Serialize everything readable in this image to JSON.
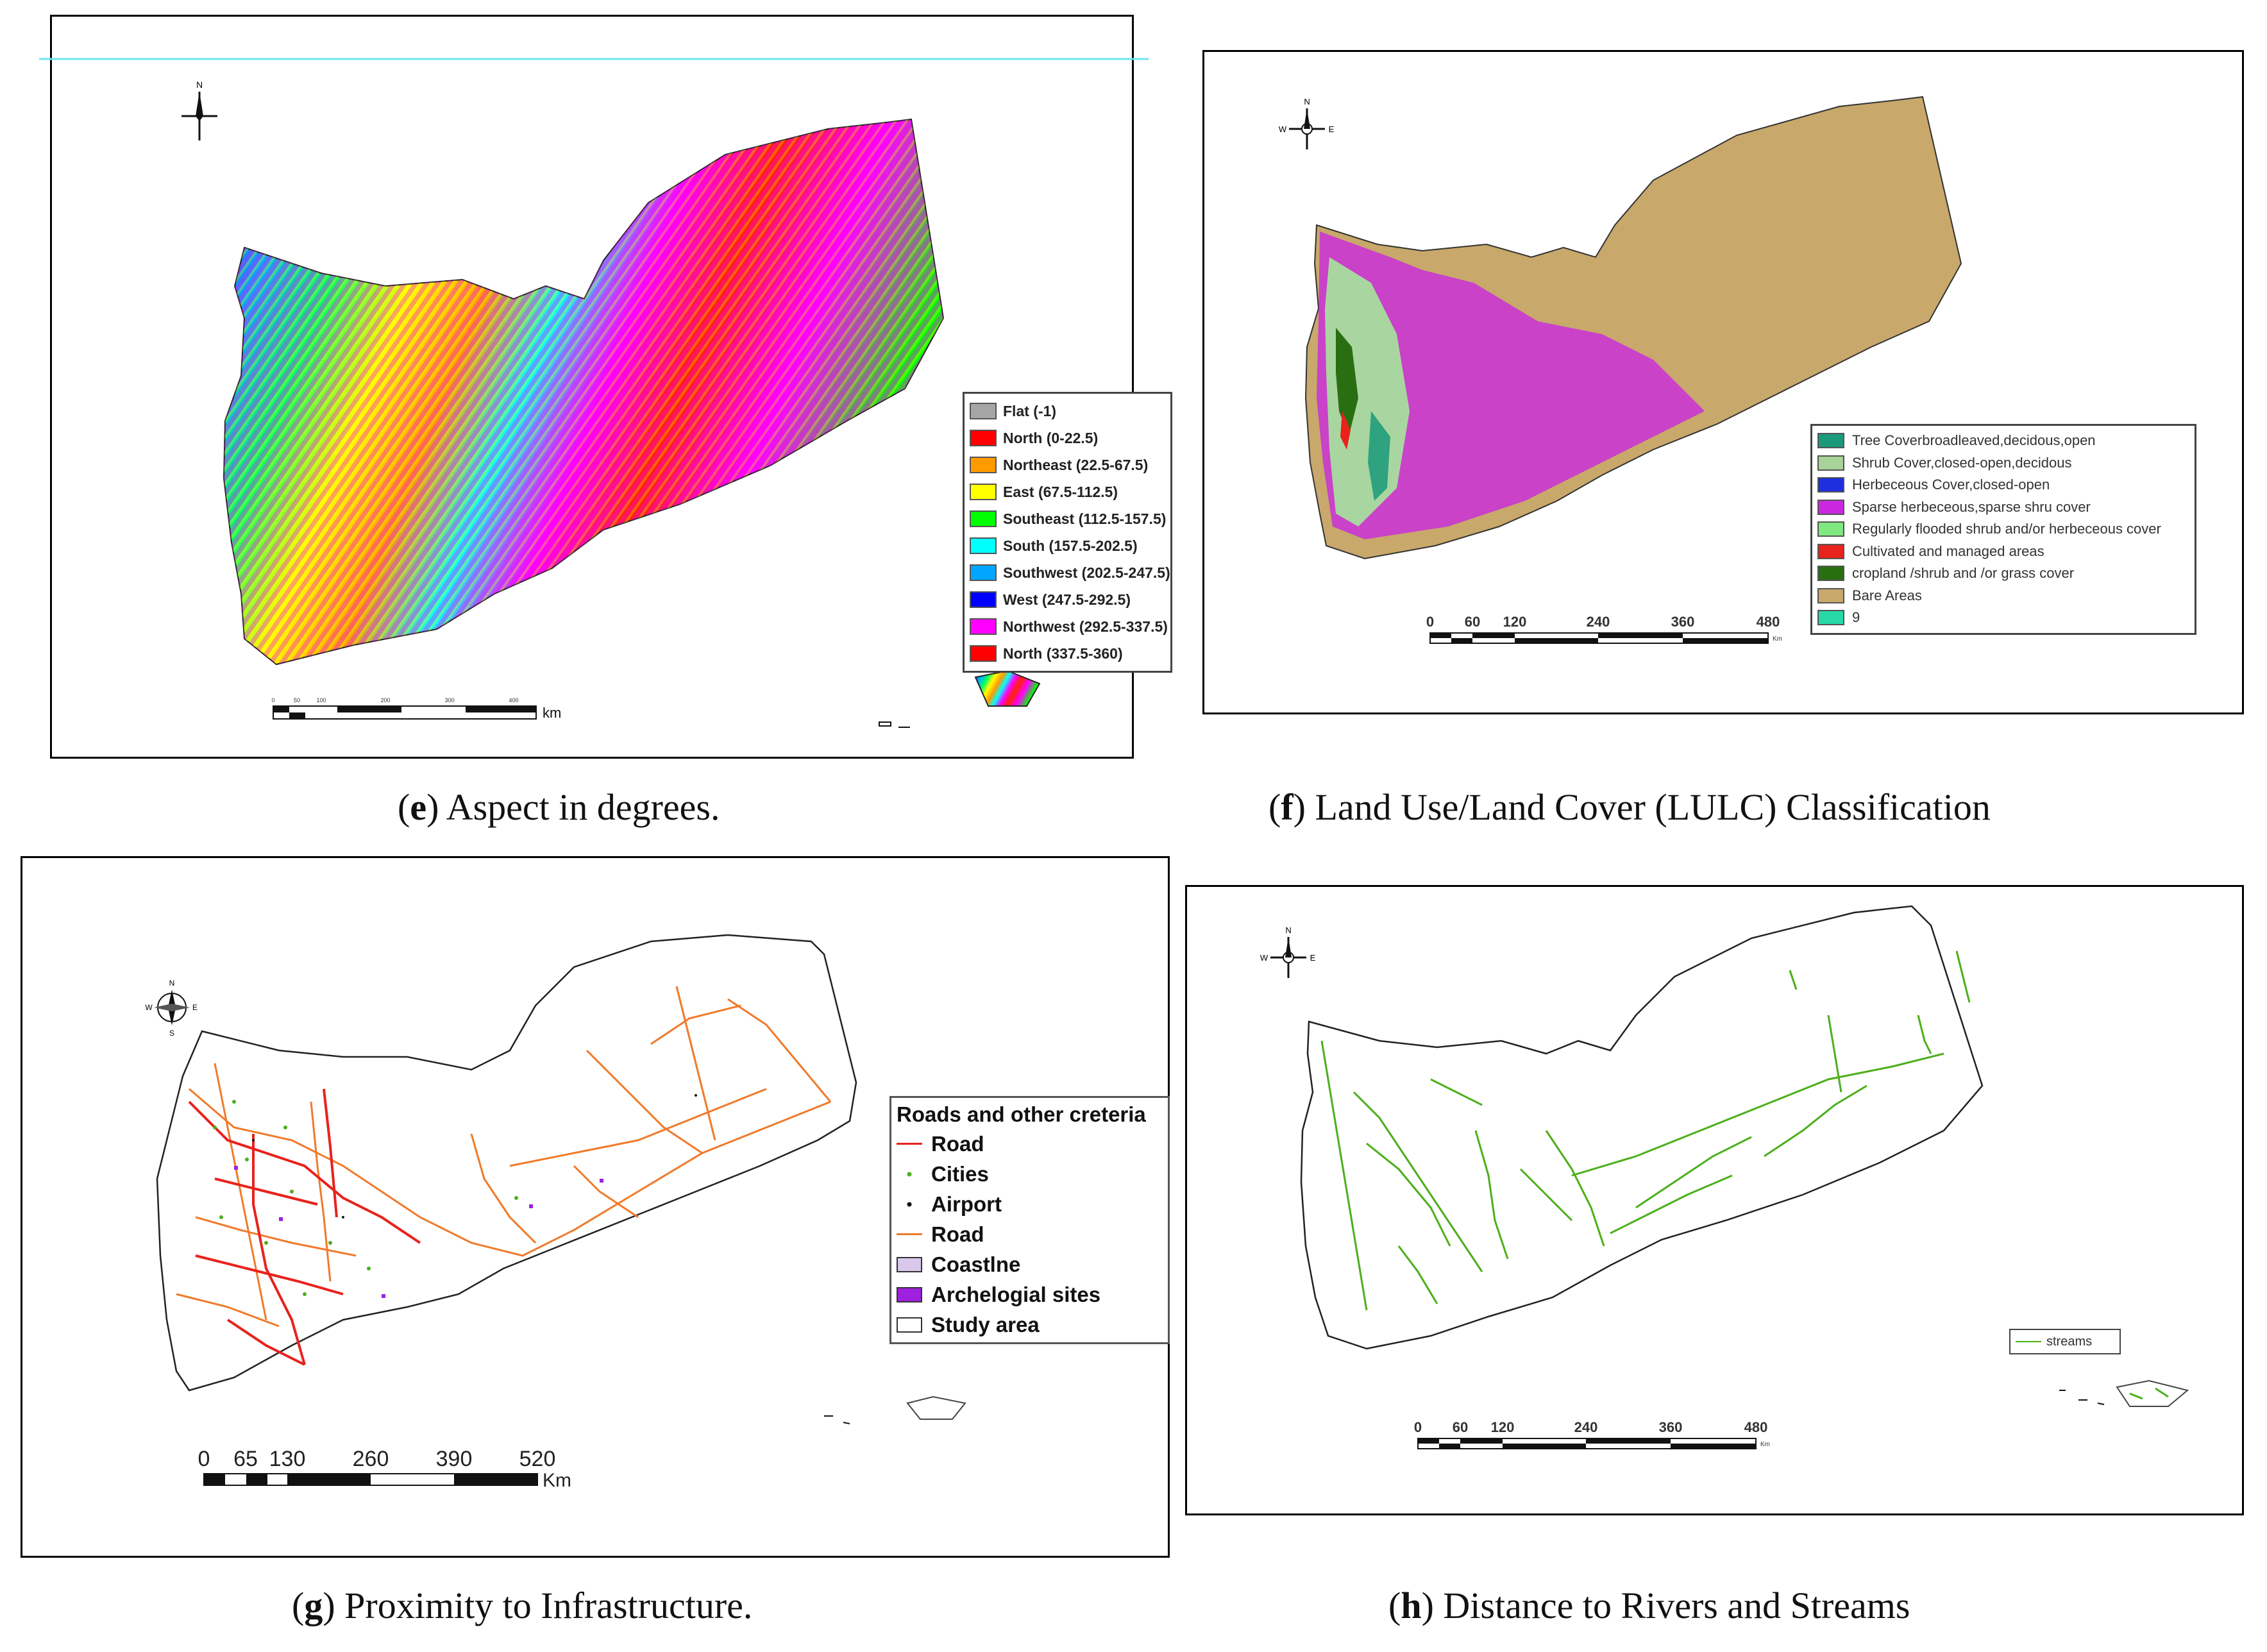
{
  "colors": {
    "frame": "#000000",
    "sea_blank": "#ffffff",
    "road_red": "#e8221c",
    "road_orange": "#f07a2a",
    "stream_green": "#4caf1a",
    "bare": "#c8a86b",
    "magenta": "#c928e0",
    "shrub": "#a9d6a0"
  },
  "panel_e": {
    "caption_letter": "e",
    "caption_text": "Aspect in degrees.",
    "unit": "km",
    "scale_ticks": [
      "0",
      "50",
      "100",
      "200",
      "300",
      "400"
    ],
    "legend": [
      {
        "label": "Flat (-1)",
        "color": "#a6a6a6"
      },
      {
        "label": "North (0-22.5)",
        "color": "#ff0000"
      },
      {
        "label": "Northeast (22.5-67.5)",
        "color": "#ff9a00"
      },
      {
        "label": "East (67.5-112.5)",
        "color": "#ffff00"
      },
      {
        "label": "Southeast (112.5-157.5)",
        "color": "#00ff00"
      },
      {
        "label": "South (157.5-202.5)",
        "color": "#00ffff"
      },
      {
        "label": "Southwest (202.5-247.5)",
        "color": "#00a6ff"
      },
      {
        "label": "West (247.5-292.5)",
        "color": "#0000ff"
      },
      {
        "label": "Northwest (292.5-337.5)",
        "color": "#ff00ff"
      },
      {
        "label": "North (337.5-360)",
        "color": "#ff0000"
      }
    ]
  },
  "panel_f": {
    "caption_letter": "f",
    "caption_text": "Land Use/Land Cover (LULC) Classification",
    "scale_ticks": [
      "0",
      "60",
      "120",
      "240",
      "360",
      "480"
    ],
    "unit": "Km",
    "legend": [
      {
        "label": "Tree Coverbroadleaved,decidous,open",
        "color": "#1a9a7a"
      },
      {
        "label": "Shrub Cover,closed-open,decidous",
        "color": "#a8d49a"
      },
      {
        "label": "Herbeceous Cover,closed-open",
        "color": "#1f2fe0"
      },
      {
        "label": "Sparse herbeceous,sparse shru cover",
        "color": "#c928e0"
      },
      {
        "label": "Regularly flooded shrub and/or herbeceous cover",
        "color": "#7fe87f"
      },
      {
        "label": "Cultivated and managed areas",
        "color": "#e8221c"
      },
      {
        "label": "cropland /shrub and /or grass cover",
        "color": "#2a6e12"
      },
      {
        "label": "Bare Areas",
        "color": "#c8a86b"
      },
      {
        "label": "9",
        "color": "#26d9a6"
      }
    ]
  },
  "panel_g": {
    "caption_letter": "g",
    "caption_text": "Proximity to Infrastructure.",
    "scale_ticks": [
      "0",
      "65",
      "130",
      "260",
      "390",
      "520"
    ],
    "unit": "Km",
    "legend_title": "Roads and other creteria",
    "legend": [
      {
        "label": "Road",
        "kind": "line",
        "color": "#e8221c"
      },
      {
        "label": "Cities",
        "kind": "dot",
        "color": "#4caf1a"
      },
      {
        "label": "Airport",
        "kind": "dot",
        "color": "#111111"
      },
      {
        "label": "Road",
        "kind": "line",
        "color": "#f07a2a"
      },
      {
        "label": "Coastlne",
        "kind": "box",
        "color": "#d9c8ec"
      },
      {
        "label": "Archelogial sites",
        "kind": "box",
        "color": "#a020e0"
      },
      {
        "label": "Study area",
        "kind": "box",
        "color": "#ffffff"
      }
    ]
  },
  "panel_h": {
    "caption_letter": "h",
    "caption_text": "Distance to Rivers and Streams",
    "scale_ticks": [
      "0",
      "60",
      "120",
      "240",
      "360",
      "480"
    ],
    "unit": "Km",
    "legend": [
      {
        "label": "streams",
        "color": "#4caf1a"
      }
    ]
  },
  "north_arrow": {
    "n": "N",
    "s": "S",
    "e": "E",
    "w": "W"
  }
}
